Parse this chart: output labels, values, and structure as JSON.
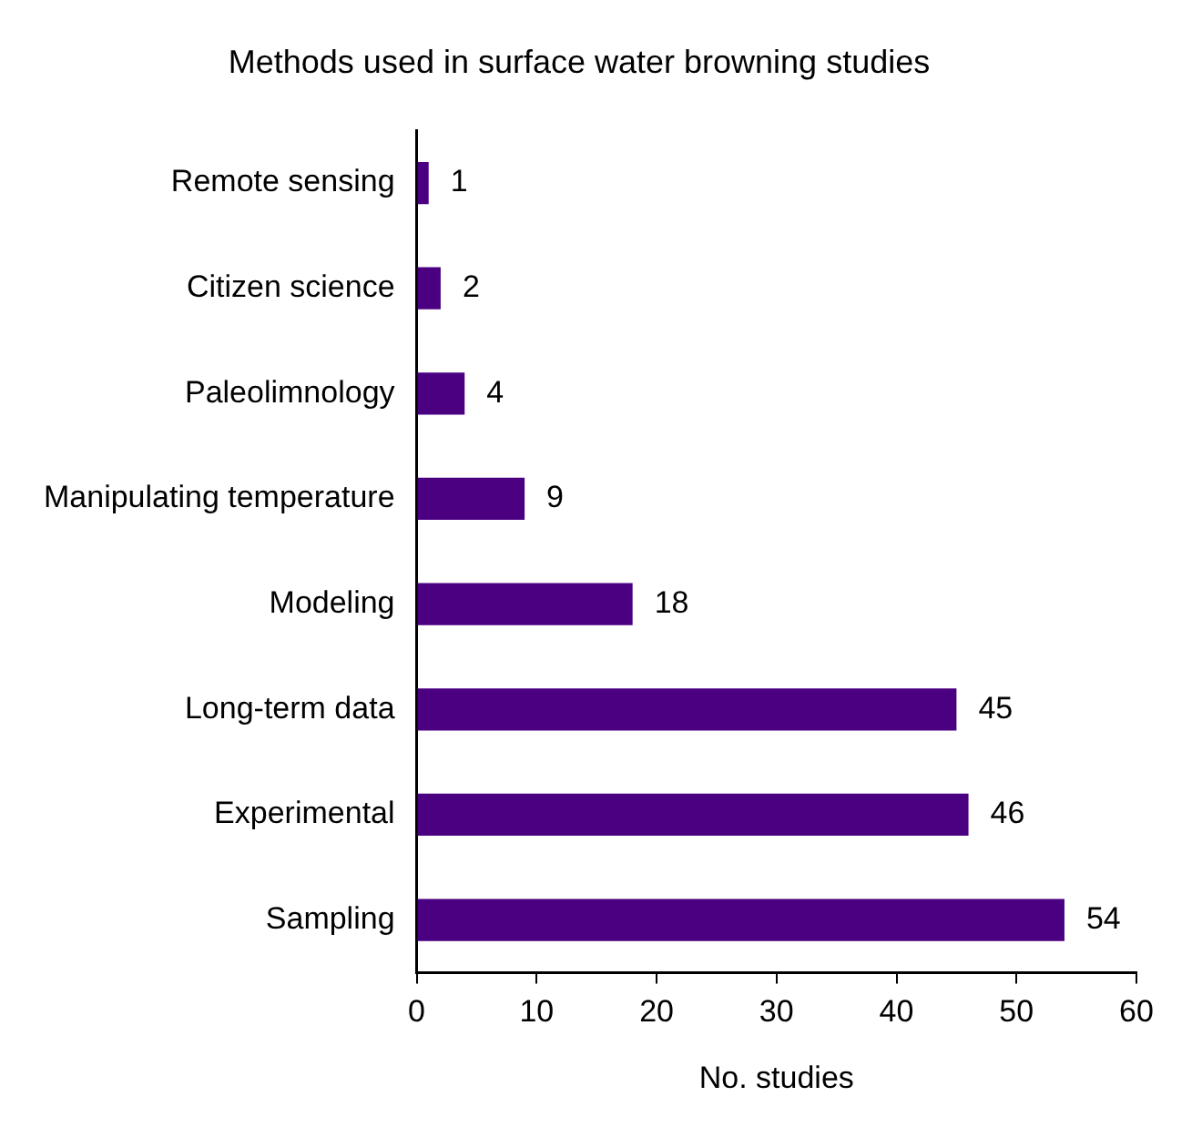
{
  "chart_data": {
    "type": "bar",
    "orientation": "horizontal",
    "title": "Methods used in surface water browning studies",
    "xlabel": "No. studies",
    "categories": [
      "Remote sensing",
      "Citizen science",
      "Paleolimnology",
      "Manipulating temperature",
      "Modeling",
      "Long-term data",
      "Experimental",
      "Sampling"
    ],
    "values": [
      1,
      2,
      4,
      9,
      18,
      45,
      46,
      54
    ],
    "color": "#4b0082",
    "xlim": [
      0,
      60
    ],
    "xticks": [
      0,
      10,
      20,
      30,
      40,
      50,
      60
    ],
    "data_labels": true,
    "grid": false,
    "legend": false
  }
}
